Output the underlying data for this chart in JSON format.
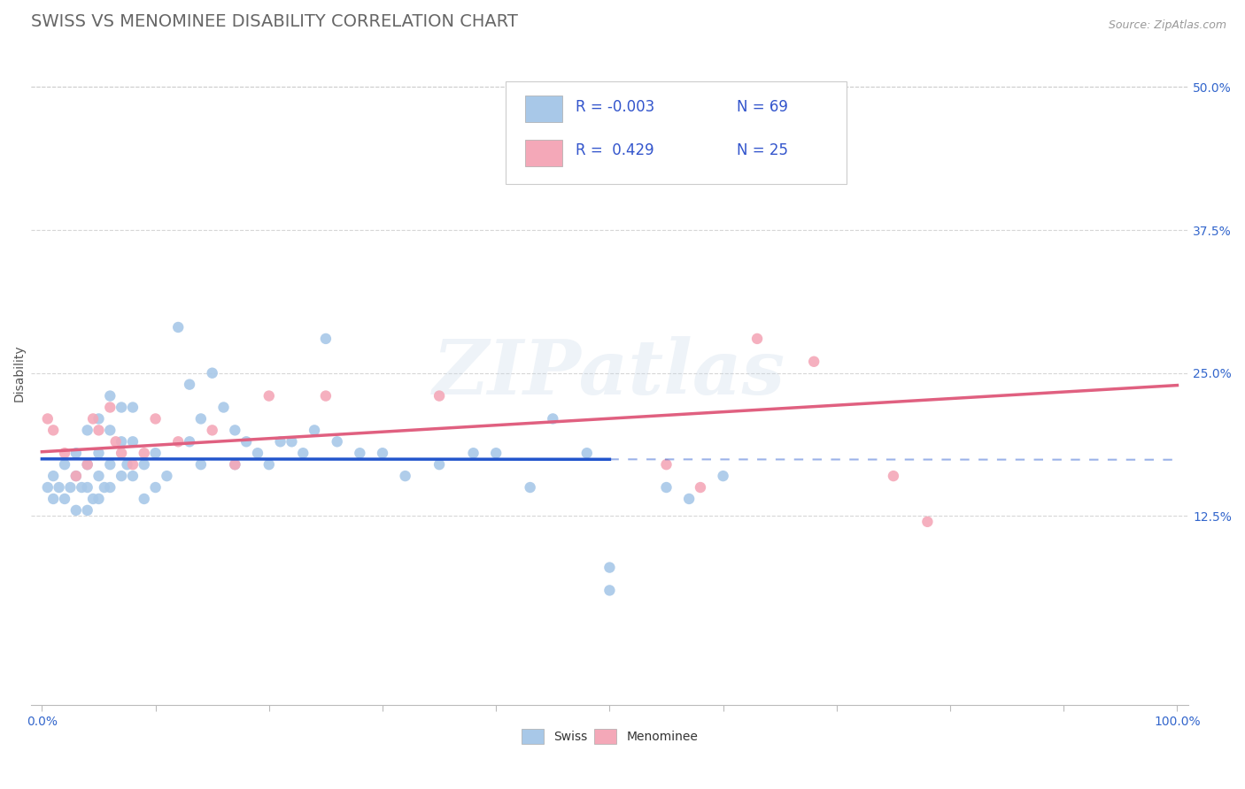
{
  "title": "SWISS VS MENOMINEE DISABILITY CORRELATION CHART",
  "source": "Source: ZipAtlas.com",
  "ylabel": "Disability",
  "xlim": [
    0,
    100
  ],
  "ylim": [
    -4,
    54
  ],
  "ytick_labels_right": [
    "12.5%",
    "25.0%",
    "37.5%",
    "50.0%"
  ],
  "ytick_positions_right": [
    12.5,
    25.0,
    37.5,
    50.0
  ],
  "swiss_color": "#a8c8e8",
  "menominee_color": "#f4a8b8",
  "swiss_line_color": "#2255cc",
  "menominee_line_color": "#e06080",
  "grid_color": "#cccccc",
  "background_color": "#ffffff",
  "title_color": "#666666",
  "legend_R_swiss": "-0.003",
  "legend_N_swiss": "69",
  "legend_R_menominee": "0.429",
  "legend_N_menominee": "25",
  "swiss_R": -0.003,
  "menominee_R": 0.429,
  "swiss_x": [
    0.5,
    1,
    1,
    1.5,
    2,
    2,
    2.5,
    3,
    3,
    3,
    3.5,
    4,
    4,
    4,
    4,
    4.5,
    5,
    5,
    5,
    5,
    5.5,
    6,
    6,
    6,
    6,
    7,
    7,
    7,
    7.5,
    8,
    8,
    8,
    9,
    9,
    10,
    10,
    11,
    12,
    13,
    13,
    14,
    14,
    15,
    16,
    17,
    17,
    18,
    19,
    20,
    21,
    22,
    23,
    24,
    25,
    26,
    28,
    30,
    32,
    35,
    38,
    40,
    43,
    45,
    48,
    50,
    50,
    55,
    57,
    60
  ],
  "swiss_y": [
    15,
    16,
    14,
    15,
    17,
    14,
    15,
    18,
    16,
    13,
    15,
    20,
    17,
    15,
    13,
    14,
    21,
    18,
    16,
    14,
    15,
    23,
    20,
    17,
    15,
    22,
    19,
    16,
    17,
    22,
    19,
    16,
    17,
    14,
    18,
    15,
    16,
    29,
    24,
    19,
    21,
    17,
    25,
    22,
    20,
    17,
    19,
    18,
    17,
    19,
    19,
    18,
    20,
    28,
    19,
    18,
    18,
    16,
    17,
    18,
    18,
    15,
    21,
    18,
    8,
    6,
    15,
    14,
    16
  ],
  "menominee_x": [
    0.5,
    1,
    2,
    3,
    4,
    4.5,
    5,
    6,
    6.5,
    7,
    8,
    9,
    10,
    12,
    15,
    17,
    20,
    25,
    35,
    55,
    58,
    63,
    68,
    75,
    78
  ],
  "menominee_y": [
    21,
    20,
    18,
    16,
    17,
    21,
    20,
    22,
    19,
    18,
    17,
    18,
    21,
    19,
    20,
    17,
    23,
    23,
    23,
    17,
    15,
    28,
    26,
    16,
    12
  ],
  "watermark_text": "ZIPatlas",
  "title_fontsize": 14,
  "axis_label_fontsize": 10,
  "tick_fontsize": 10,
  "legend_fontsize": 12,
  "source_fontsize": 9
}
